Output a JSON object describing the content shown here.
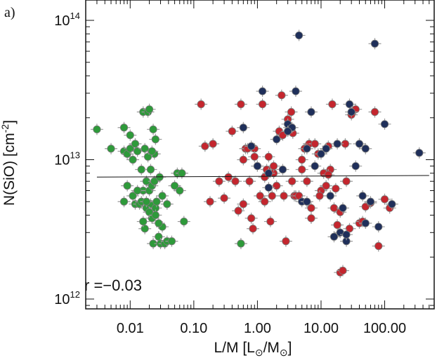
{
  "chart_data": {
    "type": "scatter",
    "panel_label": "a)",
    "xlabel_parts": [
      "L/M [L",
      "⊙",
      "/M",
      "⊙",
      "]"
    ],
    "ylabel_parts": [
      "N(SiO) [cm",
      "-2",
      "]"
    ],
    "xscale": "log",
    "yscale": "log",
    "xlim": [
      0.002,
      600
    ],
    "ylim": [
      850000000000.0,
      140000000000000.0
    ],
    "xticks": [
      {
        "value": 0.01,
        "label": "0.01"
      },
      {
        "value": 0.1,
        "label": "0.10"
      },
      {
        "value": 1,
        "label": "1.00"
      },
      {
        "value": 10,
        "label": "10.00"
      },
      {
        "value": 100,
        "label": "100.00"
      }
    ],
    "yticks": [
      {
        "value": 1000000000000.0,
        "base": "10",
        "exp": "12"
      },
      {
        "value": 10000000000000.0,
        "base": "10",
        "exp": "13"
      },
      {
        "value": 100000000000000.0,
        "base": "10",
        "exp": "14"
      }
    ],
    "annotation": "r =−0.03",
    "fit_line": {
      "x": [
        0.003,
        500
      ],
      "y": [
        7500000000000.0,
        7700000000000.0
      ]
    },
    "colors": {
      "green": "#2e9a3a",
      "red": "#c4262e",
      "navy": "#1f2f5a",
      "errorbar": "#9a9a9a",
      "axis": "#111111"
    },
    "series": [
      {
        "color": "green",
        "x": [
          0.003,
          0.005,
          0.008,
          0.008,
          0.009,
          0.01,
          0.01,
          0.011,
          0.012,
          0.012,
          0.013,
          0.014,
          0.015,
          0.015,
          0.016,
          0.016,
          0.017,
          0.017,
          0.018,
          0.018,
          0.019,
          0.019,
          0.02,
          0.02,
          0.021,
          0.021,
          0.022,
          0.022,
          0.023,
          0.023,
          0.024,
          0.024,
          0.025,
          0.025,
          0.026,
          0.028,
          0.029,
          0.03,
          0.032,
          0.035,
          0.038,
          0.05,
          0.055,
          0.06,
          0.065,
          0.07,
          0.008,
          0.009,
          0.011,
          0.013,
          0.016,
          0.018,
          0.02,
          0.022,
          0.025,
          0.028,
          0.032,
          0.038,
          0.045,
          0.55
        ],
        "y": [
          16500000000000.0,
          12000000000000.0,
          11500000000000.0,
          17000000000000.0,
          11000000000000.0,
          15000000000000.0,
          12000000000000.0,
          5500000000000.0,
          13000000000000.0,
          4800000000000.0,
          11500000000000.0,
          4800000000000.0,
          8500000000000.0,
          5000000000000.0,
          6000000000000.0,
          22000000000000.0,
          3200000000000.0,
          12000000000000.0,
          4500000000000.0,
          7000000000000.0,
          10500000000000.0,
          22000000000000.0,
          6000000000000.0,
          23000000000000.0,
          4800000000000.0,
          8500000000000.0,
          6500000000000.0,
          3800000000000.0,
          2500000000000.0,
          16500000000000.0,
          7000000000000.0,
          11000000000000.0,
          4500000000000.0,
          14000000000000.0,
          5000000000000.0,
          2800000000000.0,
          7500000000000.0,
          2500000000000.0,
          3300000000000.0,
          2500000000000.0,
          2600000000000.0,
          6500000000000.0,
          8000000000000.0,
          6000000000000.0,
          8000000000000.0,
          3600000000000.0,
          5000000000000.0,
          6500000000000.0,
          10000000000000.0,
          6000000000000.0,
          3600000000000.0,
          5000000000000.0,
          4200000000000.0,
          11500000000000.0,
          4000000000000.0,
          3500000000000.0,
          5500000000000.0,
          4800000000000.0,
          2600000000000.0,
          2500000000000.0
        ]
      },
      {
        "color": "red",
        "x": [
          0.13,
          0.15,
          0.18,
          0.2,
          0.25,
          0.3,
          0.35,
          0.4,
          0.45,
          0.5,
          0.55,
          0.6,
          0.65,
          0.7,
          0.75,
          0.8,
          0.85,
          0.9,
          1.0,
          1.1,
          1.2,
          1.3,
          1.4,
          1.5,
          1.6,
          1.7,
          1.8,
          2.0,
          2.2,
          2.4,
          2.6,
          2.8,
          3.0,
          3.2,
          3.4,
          3.6,
          3.8,
          4.0,
          4.5,
          5.0,
          5.5,
          6.0,
          6.5,
          7.0,
          8.0,
          9.0,
          10,
          11,
          12,
          13,
          14,
          15,
          16,
          18,
          20,
          22,
          25,
          28,
          30,
          35,
          40,
          45,
          50,
          60,
          70,
          80,
          100,
          120,
          0.6,
          0.9,
          1.3,
          1.8,
          2.5,
          3.5,
          5.0,
          7.0,
          9.5,
          13,
          17,
          20,
          24
        ],
        "y": [
          25000000000000.0,
          12500000000000.0,
          5000000000000.0,
          13000000000000.0,
          7000000000000.0,
          5300000000000.0,
          7500000000000.0,
          16000000000000.0,
          7000000000000.0,
          4300000000000.0,
          25000000000000.0,
          10000000000000.0,
          12000000000000.0,
          12000000000000.0,
          7000000000000.0,
          3800000000000.0,
          3200000000000.0,
          12000000000000.0,
          9000000000000.0,
          5500000000000.0,
          25000000000000.0,
          7500000000000.0,
          8500000000000.0,
          10500000000000.0,
          3600000000000.0,
          5500000000000.0,
          8000000000000.0,
          6500000000000.0,
          16000000000000.0,
          29000000000000.0,
          5500000000000.0,
          2600000000000.0,
          19500000000000.0,
          17000000000000.0,
          22000000000000.0,
          15500000000000.0,
          5500000000000.0,
          5500000000000.0,
          5500000000000.0,
          10000000000000.0,
          12000000000000.0,
          7000000000000.0,
          13000000000000.0,
          4500000000000.0,
          13000000000000.0,
          11000000000000.0,
          6000000000000.0,
          8000000000000.0,
          6500000000000.0,
          12500000000000.0,
          8500000000000.0,
          25000000000000.0,
          4500000000000.0,
          3400000000000.0,
          1550000000000.0,
          1600000000000.0,
          7000000000000.0,
          3200000000000.0,
          21000000000000.0,
          23000000000000.0,
          3500000000000.0,
          3600000000000.0,
          4600000000000.0,
          4900000000000.0,
          22000000000000.0,
          2400000000000.0,
          5200000000000.0,
          4500000000000.0,
          4800000000000.0,
          10500000000000.0,
          5000000000000.0,
          9000000000000.0,
          15000000000000.0,
          7000000000000.0,
          8500000000000.0,
          3800000000000.0,
          5500000000000.0,
          7800000000000.0,
          6200000000000.0,
          4200000000000.0,
          13000000000000.0
        ]
      },
      {
        "color": "navy",
        "x": [
          0.6,
          0.8,
          1.0,
          1.2,
          1.5,
          2.0,
          2.5,
          3.0,
          3.5,
          4.0,
          4.5,
          5.0,
          6.0,
          7.0,
          8.0,
          10,
          12,
          14,
          16,
          18,
          20,
          22,
          25,
          28,
          30,
          35,
          40,
          45,
          50,
          60,
          70,
          80,
          100,
          130,
          350,
          1.5,
          3.0,
          6.0,
          12,
          25,
          50
        ],
        "y": [
          17000000000000.0,
          12500000000000.0,
          9000000000000.0,
          31000000000000.0,
          8000000000000.0,
          14000000000000.0,
          8500000000000.0,
          18000000000000.0,
          17000000000000.0,
          31000000000000.0,
          78000000000000.0,
          5000000000000.0,
          5000000000000.0,
          22000000000000.0,
          9000000000000.0,
          11000000000000.0,
          12000000000000.0,
          5500000000000.0,
          2800000000000.0,
          13000000000000.0,
          3000000000000.0,
          4500000000000.0,
          2600000000000.0,
          25000000000000.0,
          22000000000000.0,
          9000000000000.0,
          13000000000000.0,
          5500000000000.0,
          3500000000000.0,
          5000000000000.0,
          68000000000000.0,
          3300000000000.0,
          18000000000000.0,
          4800000000000.0,
          11200000000000.0,
          6300000000000.0,
          16000000000000.0,
          12000000000000.0,
          12000000000000.0,
          2900000000000.0,
          12000000000000.0
        ]
      }
    ]
  }
}
